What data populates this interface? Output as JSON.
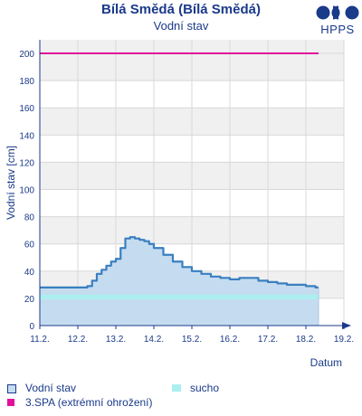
{
  "header": {
    "title": "Bílá Smědá (Bílá Smědá)",
    "subtitle": "Vodní stav",
    "logo_text": "HPPS",
    "logo_color": "#1a3a8a"
  },
  "chart_data": {
    "type": "area",
    "xlabel": "Datum",
    "ylabel": "Vodní stav [cm]",
    "x_range": [
      "2025-02-11",
      "2025-02-19"
    ],
    "x_tick_labels": [
      "11.2.",
      "12.2.",
      "13.2.",
      "14.2.",
      "15.2.",
      "16.2.",
      "17.2.",
      "18.2.",
      "19.2."
    ],
    "ylim": [
      0,
      210
    ],
    "y_ticks": [
      0,
      20,
      40,
      60,
      80,
      100,
      120,
      140,
      160,
      180,
      200
    ],
    "grid": true,
    "series": [
      {
        "name": "Vodní stav",
        "color": "#3a7fc0",
        "fill": "#c5dcf0",
        "x": [
          "11.2. 00:00",
          "12.2. 00:00",
          "12.2. 03:00",
          "12.2. 06:00",
          "12.2. 09:00",
          "12.2. 12:00",
          "12.2. 15:00",
          "12.2. 18:00",
          "12.2. 21:00",
          "13.2. 00:00",
          "13.2. 03:00",
          "13.2. 06:00",
          "13.2. 09:00",
          "13.2. 12:00",
          "13.2. 15:00",
          "13.2. 18:00",
          "13.2. 21:00",
          "14.2. 00:00",
          "14.2. 06:00",
          "14.2. 12:00",
          "14.2. 18:00",
          "15.2. 00:00",
          "15.2. 06:00",
          "15.2. 12:00",
          "15.2. 18:00",
          "16.2. 00:00",
          "16.2. 06:00",
          "16.2. 12:00",
          "16.2. 18:00",
          "17.2. 00:00",
          "17.2. 06:00",
          "17.2. 12:00",
          "17.2. 18:00",
          "18.2. 00:00",
          "18.2. 06:00"
        ],
        "values": [
          28,
          28,
          28,
          29,
          33,
          38,
          41,
          44,
          47,
          49,
          57,
          64,
          65,
          64,
          63,
          62,
          60,
          57,
          52,
          47,
          43,
          40,
          38,
          36,
          35,
          34,
          35,
          35,
          33,
          32,
          31,
          30,
          30,
          29,
          28
        ]
      },
      {
        "name": "sucho",
        "color": "#aaf0f0",
        "value": 21
      },
      {
        "name": "3.SPA (extrémní ohrožení)",
        "color": "#e0109a",
        "value": 200
      }
    ]
  },
  "legend": {
    "items": [
      {
        "label": "Vodní stav",
        "color": "#c5dcf0",
        "border": "#1a3a8a"
      },
      {
        "label": "sucho",
        "color": "#aaf0f0"
      },
      {
        "label": "3.SPA (extrémní ohrožení)",
        "color": "#e0109a"
      }
    ]
  }
}
